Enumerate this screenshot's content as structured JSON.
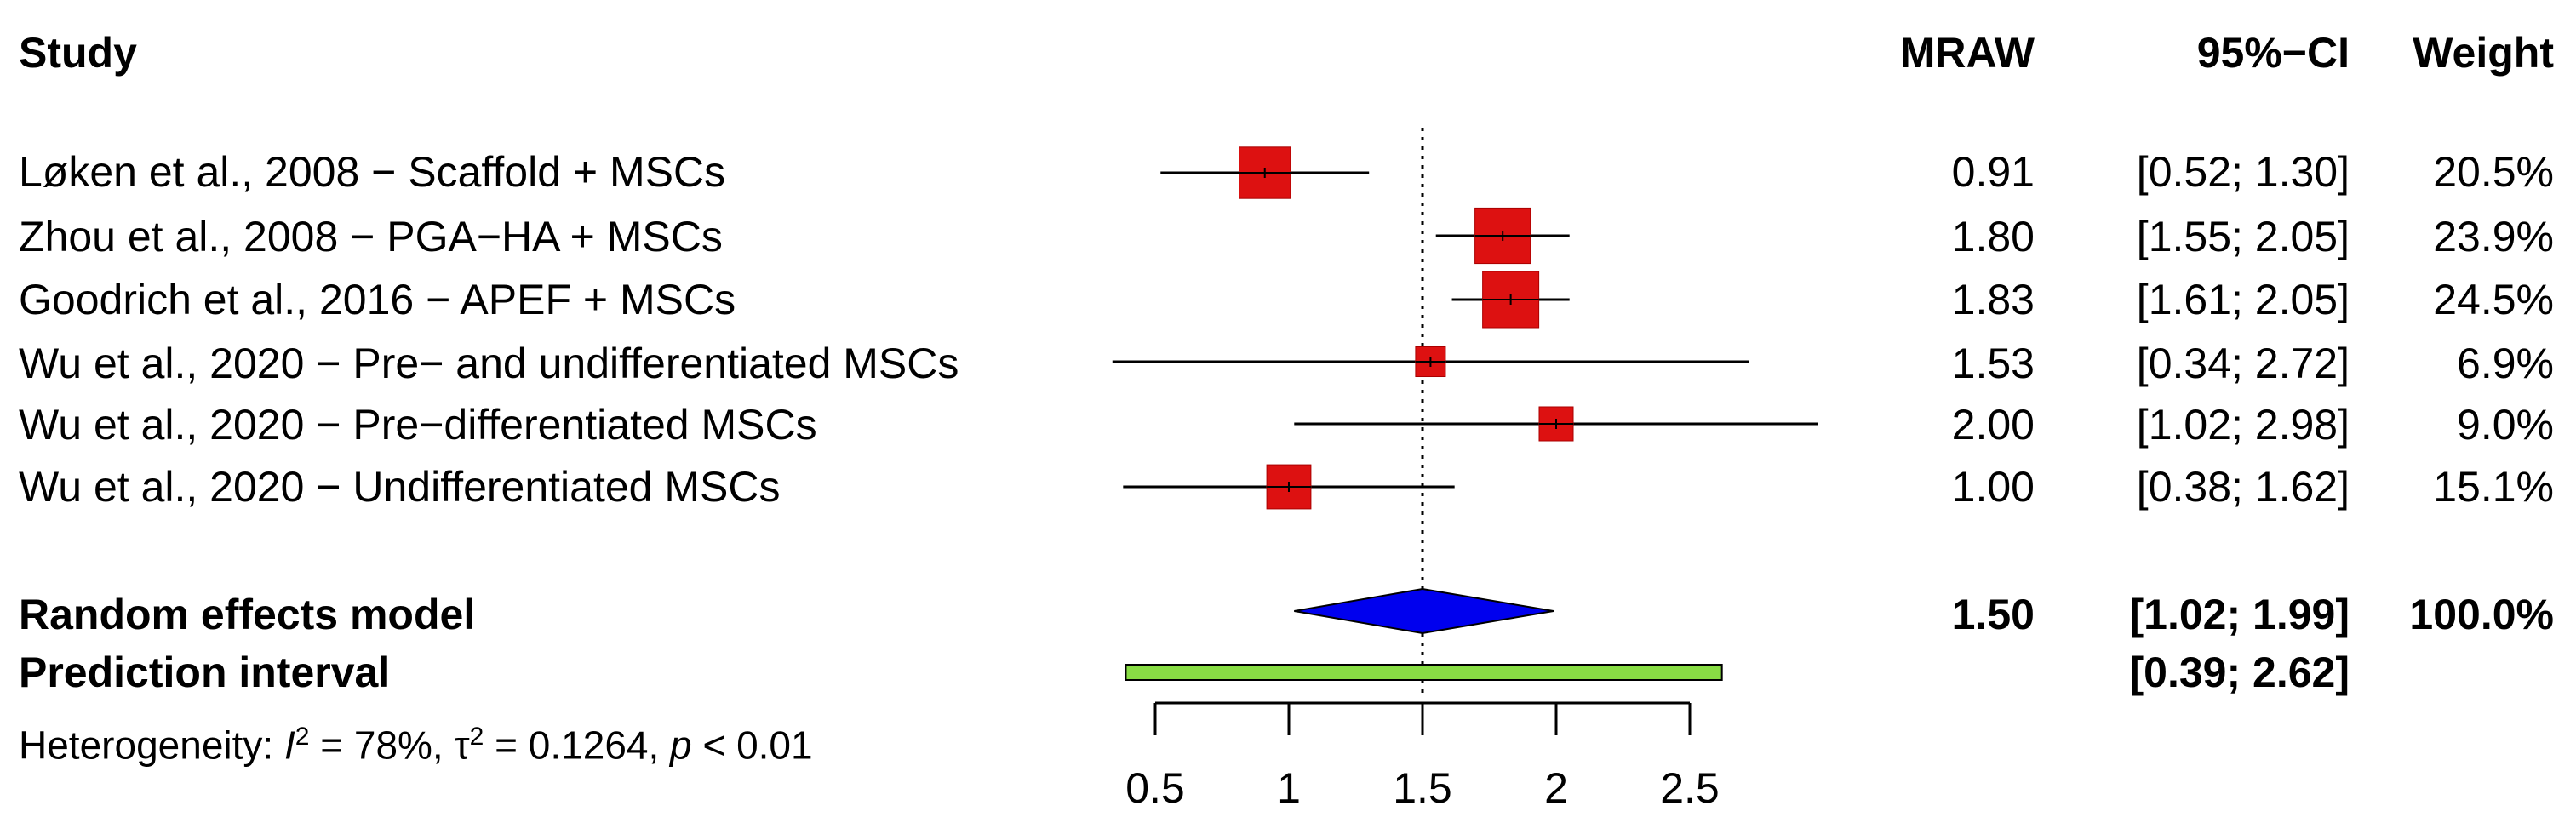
{
  "chart_data": {
    "type": "forest",
    "headers": {
      "study": "Study",
      "effect": "MRAW",
      "ci": "95%−CI",
      "weight": "Weight"
    },
    "studies": [
      {
        "label": "Løken et al., 2008 − Scaffold + MSCs",
        "mean": 0.91,
        "lower": 0.52,
        "upper": 1.3,
        "mean_text": "0.91",
        "ci_text": "[0.52; 1.30]",
        "weight": 20.5,
        "weight_text": "20.5%"
      },
      {
        "label": "Zhou et al., 2008 − PGA−HA + MSCs",
        "mean": 1.8,
        "lower": 1.55,
        "upper": 2.05,
        "mean_text": "1.80",
        "ci_text": "[1.55; 2.05]",
        "weight": 23.9,
        "weight_text": "23.9%"
      },
      {
        "label": "Goodrich et al., 2016 − APEF + MSCs",
        "mean": 1.83,
        "lower": 1.61,
        "upper": 2.05,
        "mean_text": "1.83",
        "ci_text": "[1.61; 2.05]",
        "weight": 24.5,
        "weight_text": "24.5%"
      },
      {
        "label": "Wu et al., 2020 − Pre− and undifferentiated MSCs",
        "mean": 1.53,
        "lower": 0.34,
        "upper": 2.72,
        "mean_text": "1.53",
        "ci_text": "[0.34; 2.72]",
        "weight": 6.9,
        "weight_text": "6.9%"
      },
      {
        "label": "Wu et al., 2020 − Pre−differentiated MSCs",
        "mean": 2.0,
        "lower": 1.02,
        "upper": 2.98,
        "mean_text": "2.00",
        "ci_text": "[1.02; 2.98]",
        "weight": 9.0,
        "weight_text": "9.0%"
      },
      {
        "label": "Wu et al., 2020 − Undifferentiated MSCs",
        "mean": 1.0,
        "lower": 0.38,
        "upper": 1.62,
        "mean_text": "1.00",
        "ci_text": "[0.38; 1.62]",
        "weight": 15.1,
        "weight_text": "15.1%"
      }
    ],
    "random_effects": {
      "label": "Random effects model",
      "mean": 1.5,
      "lower": 1.02,
      "upper": 1.99,
      "mean_text": "1.50",
      "ci_text": "[1.02; 1.99]",
      "weight_text": "100.0%"
    },
    "prediction_interval": {
      "label": "Prediction interval",
      "lower": 0.39,
      "upper": 2.62,
      "ci_text": "[0.39; 2.62]"
    },
    "heterogeneity": {
      "prefix": "Heterogeneity: ",
      "i2_symbol": "I",
      "i2_value": " = 78%, ",
      "tau_symbol": "τ",
      "tau_value": " = 0.1264, ",
      "p_symbol": "p",
      "p_value": " < 0.01",
      "exponent": "2"
    },
    "x_ticks": [
      0.5,
      1,
      1.5,
      2,
      2.5
    ],
    "x_tick_labels": [
      "0.5",
      "1",
      "1.5",
      "2",
      "2.5"
    ],
    "xlim": [
      0.5,
      2.5
    ],
    "reference_line": 1.5,
    "colors": {
      "square": "#dd1111",
      "diamond": "#0000ee",
      "prediction": "#88dd44"
    }
  }
}
